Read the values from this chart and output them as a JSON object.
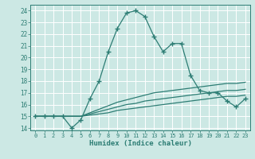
{
  "xlabel": "Humidex (Indice chaleur)",
  "bg_color": "#cce8e4",
  "grid_color": "#b0d8d2",
  "line_color": "#2d7d74",
  "xlim": [
    -0.5,
    23.5
  ],
  "ylim": [
    13.8,
    24.5
  ],
  "xticks": [
    0,
    1,
    2,
    3,
    4,
    5,
    6,
    7,
    8,
    9,
    10,
    11,
    12,
    13,
    14,
    15,
    16,
    17,
    18,
    19,
    20,
    21,
    22,
    23
  ],
  "yticks": [
    14,
    15,
    16,
    17,
    18,
    19,
    20,
    21,
    22,
    23,
    24
  ],
  "line1_x": [
    0,
    1,
    2,
    3,
    4,
    5,
    6,
    7,
    8,
    9,
    10,
    11,
    12,
    13,
    14,
    15,
    16,
    17,
    18,
    19,
    20,
    21,
    22,
    23
  ],
  "line1_y": [
    15,
    15,
    15,
    15,
    14,
    14.7,
    16.5,
    18,
    20.5,
    22.5,
    23.8,
    24.0,
    23.5,
    21.8,
    20.5,
    21.2,
    21.2,
    18.5,
    17.2,
    17.0,
    17.0,
    16.3,
    15.8,
    16.5
  ],
  "line2_x": [
    0,
    1,
    2,
    3,
    4,
    5,
    6,
    7,
    8,
    9,
    10,
    11,
    12,
    13,
    14,
    15,
    16,
    17,
    18,
    19,
    20,
    21,
    22,
    23
  ],
  "line2_y": [
    15,
    15,
    15,
    15,
    15,
    15,
    15.1,
    15.2,
    15.3,
    15.5,
    15.6,
    15.7,
    15.8,
    15.9,
    16.0,
    16.1,
    16.2,
    16.3,
    16.4,
    16.5,
    16.6,
    16.7,
    16.7,
    16.8
  ],
  "line3_x": [
    0,
    1,
    2,
    3,
    4,
    5,
    6,
    7,
    8,
    9,
    10,
    11,
    12,
    13,
    14,
    15,
    16,
    17,
    18,
    19,
    20,
    21,
    22,
    23
  ],
  "line3_y": [
    15,
    15,
    15,
    15,
    15,
    15,
    15.2,
    15.4,
    15.6,
    15.8,
    16.0,
    16.1,
    16.3,
    16.4,
    16.5,
    16.6,
    16.7,
    16.8,
    16.9,
    17.0,
    17.1,
    17.2,
    17.2,
    17.3
  ],
  "line4_x": [
    0,
    1,
    2,
    3,
    4,
    5,
    6,
    7,
    8,
    9,
    10,
    11,
    12,
    13,
    14,
    15,
    16,
    17,
    18,
    19,
    20,
    21,
    22,
    23
  ],
  "line4_y": [
    15,
    15,
    15,
    15,
    15,
    15,
    15.3,
    15.6,
    15.9,
    16.2,
    16.4,
    16.6,
    16.8,
    17.0,
    17.1,
    17.2,
    17.3,
    17.4,
    17.5,
    17.6,
    17.7,
    17.8,
    17.8,
    17.9
  ]
}
